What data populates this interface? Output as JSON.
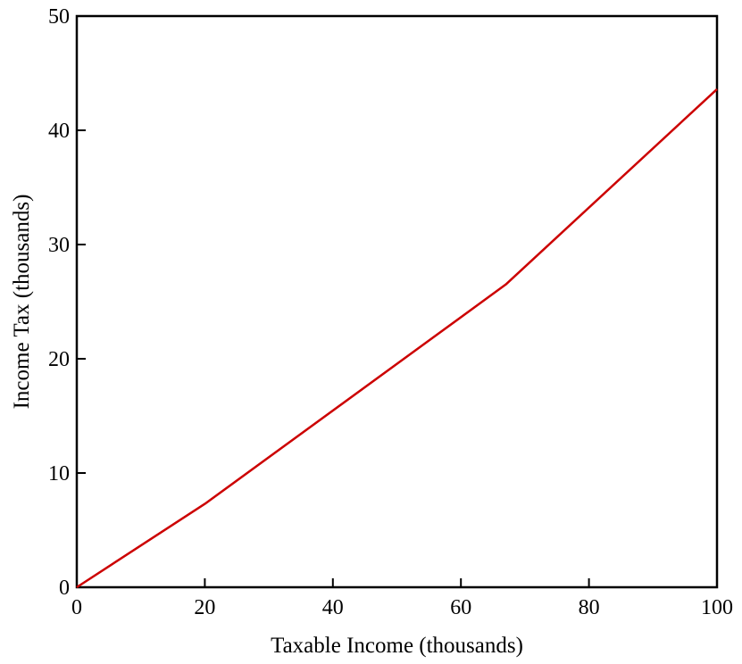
{
  "chart_data": {
    "type": "line",
    "title": "",
    "xlabel": "Taxable Income (thousands)",
    "ylabel": "Income Tax (thousands)",
    "xlim": [
      0,
      100
    ],
    "ylim": [
      0,
      50
    ],
    "x_ticks": [
      0,
      20,
      40,
      60,
      80,
      100
    ],
    "y_ticks": [
      0,
      10,
      20,
      30,
      40,
      50
    ],
    "x_tick_labels": [
      "0",
      "20",
      "40",
      "60",
      "80",
      "100"
    ],
    "y_tick_labels": [
      "0",
      "10",
      "20",
      "30",
      "40",
      "50"
    ],
    "grid": false,
    "legend": "none",
    "series": [
      {
        "color": "#cc0000",
        "x": [
          0,
          20,
          67,
          100
        ],
        "y": [
          0,
          7.3,
          26.5,
          43.6
        ]
      }
    ]
  }
}
